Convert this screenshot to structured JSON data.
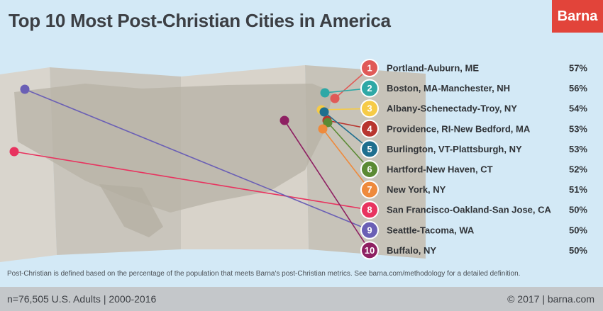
{
  "title": "Top 10 Most Post-Christian Cities in America",
  "brand": "Barna",
  "footnote": "Post-Christian is defined based on the percentage of the population that meets Barna's post-Christian metrics. See barna.com/methodology for a detailed definition.",
  "footer": {
    "sample": "n=76,505 U.S. Adults | 2000-2016",
    "copyright": "© 2017 | barna.com"
  },
  "chart_data": {
    "type": "table",
    "title": "Top 10 Most Post-Christian Cities in America",
    "columns": [
      "rank",
      "city",
      "percent"
    ],
    "rows": [
      {
        "rank": "1",
        "city": "Portland-Auburn, ME",
        "percent": "57%",
        "value": 57,
        "color": "#e05a57"
      },
      {
        "rank": "2",
        "city": "Boston, MA-Manchester, NH",
        "percent": "56%",
        "value": 56,
        "color": "#2ea8a6"
      },
      {
        "rank": "3",
        "city": "Albany-Schenectady-Troy, NY",
        "percent": "54%",
        "value": 54,
        "color": "#f6cb47"
      },
      {
        "rank": "4",
        "city": "Providence, RI-New Bedford, MA",
        "percent": "53%",
        "value": 53,
        "color": "#b8352f"
      },
      {
        "rank": "5",
        "city": "Burlington, VT-Plattsburgh, NY",
        "percent": "53%",
        "value": 53,
        "color": "#1f6f8f"
      },
      {
        "rank": "6",
        "city": "Hartford-New Haven, CT",
        "percent": "52%",
        "value": 52,
        "color": "#5b8a34"
      },
      {
        "rank": "7",
        "city": "New York, NY",
        "percent": "51%",
        "value": 51,
        "color": "#ee8a3c"
      },
      {
        "rank": "8",
        "city": "San Francisco-Oakland-San Jose, CA",
        "percent": "50%",
        "value": 50,
        "color": "#e8335f"
      },
      {
        "rank": "9",
        "city": "Seattle-Tacoma, WA",
        "percent": "50%",
        "value": 50,
        "color": "#6a5fb5"
      },
      {
        "rank": "10",
        "city": "Buffalo, NY",
        "percent": "50%",
        "value": 50,
        "color": "#8e2062"
      }
    ]
  }
}
